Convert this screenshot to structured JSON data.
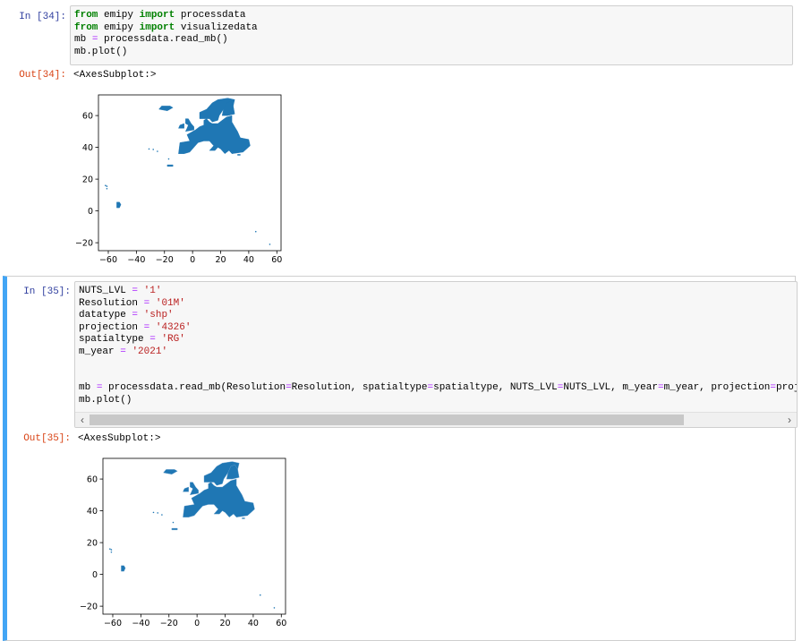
{
  "cells": [
    {
      "in_prompt": "In [34]:",
      "code_lines": [
        [
          {
            "t": "from",
            "c": "kw"
          },
          {
            "t": " emipy "
          },
          {
            "t": "import",
            "c": "kw"
          },
          {
            "t": " processdata"
          }
        ],
        [
          {
            "t": "from",
            "c": "kw"
          },
          {
            "t": " emipy "
          },
          {
            "t": "import",
            "c": "kw"
          },
          {
            "t": " visualizedata"
          }
        ],
        [
          {
            "t": "mb "
          },
          {
            "t": "=",
            "c": "op"
          },
          {
            "t": " processdata.read_mb()"
          }
        ],
        [
          {
            "t": "mb.plot()"
          }
        ]
      ],
      "out_prompt": "Out[34]:",
      "out_text": "<AxesSubplot:>"
    },
    {
      "in_prompt": "In [35]:",
      "code_lines": [
        [
          {
            "t": "NUTS_LVL "
          },
          {
            "t": "=",
            "c": "op"
          },
          {
            "t": " "
          },
          {
            "t": "'1'",
            "c": "str"
          }
        ],
        [
          {
            "t": "Resolution "
          },
          {
            "t": "=",
            "c": "op"
          },
          {
            "t": " "
          },
          {
            "t": "'01M'",
            "c": "str"
          }
        ],
        [
          {
            "t": "datatype "
          },
          {
            "t": "=",
            "c": "op"
          },
          {
            "t": " "
          },
          {
            "t": "'shp'",
            "c": "str"
          }
        ],
        [
          {
            "t": "projection "
          },
          {
            "t": "=",
            "c": "op"
          },
          {
            "t": " "
          },
          {
            "t": "'4326'",
            "c": "str"
          }
        ],
        [
          {
            "t": "spatialtype "
          },
          {
            "t": "=",
            "c": "op"
          },
          {
            "t": " "
          },
          {
            "t": "'RG'",
            "c": "str"
          }
        ],
        [
          {
            "t": "m_year "
          },
          {
            "t": "=",
            "c": "op"
          },
          {
            "t": " "
          },
          {
            "t": "'2021'",
            "c": "str"
          }
        ],
        [
          {
            "t": ""
          }
        ],
        [
          {
            "t": ""
          }
        ],
        [
          {
            "t": "mb "
          },
          {
            "t": "=",
            "c": "op"
          },
          {
            "t": " processdata.read_mb(Resolution"
          },
          {
            "t": "=",
            "c": "op"
          },
          {
            "t": "Resolution, spatialtype"
          },
          {
            "t": "=",
            "c": "op"
          },
          {
            "t": "spatialtype, NUTS_LVL"
          },
          {
            "t": "=",
            "c": "op"
          },
          {
            "t": "NUTS_LVL, m_year"
          },
          {
            "t": "=",
            "c": "op"
          },
          {
            "t": "m_year, projection"
          },
          {
            "t": "=",
            "c": "op"
          },
          {
            "t": "projection)"
          }
        ],
        [
          {
            "t": "mb.plot()"
          }
        ]
      ],
      "out_prompt": "Out[35]:",
      "out_text": "<AxesSubplot:>"
    }
  ],
  "scroll": {
    "left_arrow": "‹",
    "right_arrow": "›"
  },
  "chart_data": [
    {
      "type": "scatter",
      "title": "",
      "xlabel": "",
      "ylabel": "",
      "xlim": [
        -67,
        63
      ],
      "ylim": [
        -25,
        73
      ],
      "xticks": [
        -60,
        -40,
        -20,
        0,
        20,
        40,
        60
      ],
      "yticks": [
        -20,
        0,
        20,
        40,
        60
      ],
      "tick_labels_x": [
        "−60",
        "−40",
        "−20",
        "0",
        "20",
        "40",
        "60"
      ],
      "tick_labels_y": [
        "−20",
        "0",
        "20",
        "40",
        "60"
      ],
      "fill_color": "#1f77b4",
      "grid": false
    },
    {
      "type": "scatter",
      "title": "",
      "xlabel": "",
      "ylabel": "",
      "xlim": [
        -67,
        63
      ],
      "ylim": [
        -25,
        73
      ],
      "xticks": [
        -60,
        -40,
        -20,
        0,
        20,
        40,
        60
      ],
      "yticks": [
        -20,
        0,
        20,
        40,
        60
      ],
      "tick_labels_x": [
        "−60",
        "−40",
        "−20",
        "0",
        "20",
        "40",
        "60"
      ],
      "tick_labels_y": [
        "−20",
        "0",
        "20",
        "40",
        "60"
      ],
      "fill_color": "#1f77b4",
      "grid": false
    }
  ]
}
